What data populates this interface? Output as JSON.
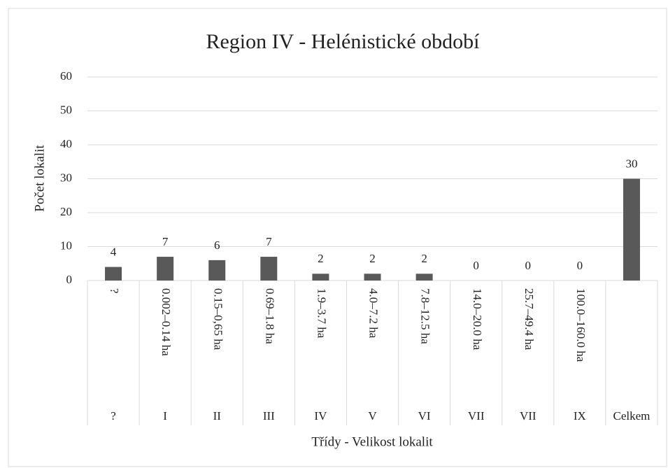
{
  "chart_data": {
    "type": "bar",
    "title": "Region IV - Helénistické období",
    "x_label": "Třídy - Velikost lokalit",
    "y_label": "Počet lokalit",
    "categories": [
      "?",
      "0.002–0.14 ha",
      "0.15–0,65 ha",
      "0.69–1.8 ha",
      "1.9–3.7 ha",
      "4.0–7.2 ha",
      "7.8–12.5 ha",
      "14.0–20.0 ha",
      "25.7–49.4 ha",
      "100.0–160.0 ha",
      null
    ],
    "classes": [
      "?",
      "I",
      "II",
      "III",
      "IV",
      "V",
      "VI",
      "VII",
      "VII",
      "IX",
      "Celkem"
    ],
    "values": [
      4,
      7,
      6,
      7,
      2,
      2,
      2,
      0,
      0,
      0,
      30
    ],
    "color": "#595959",
    "ylim": [
      0,
      60
    ],
    "yticks": [
      0,
      10,
      20,
      30,
      40,
      50,
      60
    ],
    "grid": true
  }
}
